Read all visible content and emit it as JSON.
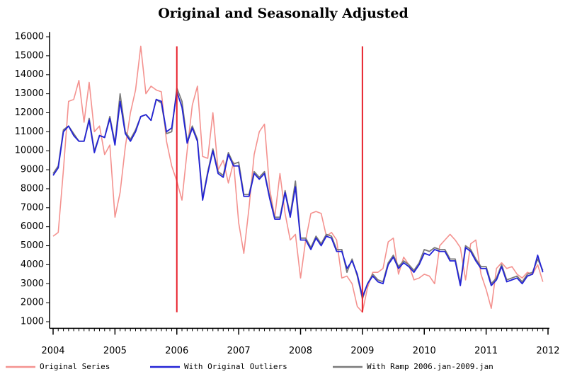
{
  "chart_data": {
    "type": "line",
    "title": "Original and Seasonally Adjusted",
    "x": [
      2004,
      2004.083,
      2004.167,
      2004.25,
      2004.333,
      2004.417,
      2004.5,
      2004.583,
      2004.667,
      2004.75,
      2004.833,
      2004.917,
      2005,
      2005.083,
      2005.167,
      2005.25,
      2005.333,
      2005.417,
      2005.5,
      2005.583,
      2005.667,
      2005.75,
      2005.833,
      2005.917,
      2006,
      2006.083,
      2006.167,
      2006.25,
      2006.333,
      2006.417,
      2006.5,
      2006.583,
      2006.667,
      2006.75,
      2006.833,
      2006.917,
      2007,
      2007.083,
      2007.167,
      2007.25,
      2007.333,
      2007.417,
      2007.5,
      2007.583,
      2007.667,
      2007.75,
      2007.833,
      2007.917,
      2008,
      2008.083,
      2008.167,
      2008.25,
      2008.333,
      2008.417,
      2008.5,
      2008.583,
      2008.667,
      2008.75,
      2008.833,
      2008.917,
      2009,
      2009.083,
      2009.167,
      2009.25,
      2009.333,
      2009.417,
      2009.5,
      2009.583,
      2009.667,
      2009.75,
      2009.833,
      2009.917,
      2010,
      2010.083,
      2010.167,
      2010.25,
      2010.333,
      2010.417,
      2010.5,
      2010.583,
      2010.667,
      2010.75,
      2010.833,
      2010.917,
      2011,
      2011.083,
      2011.167,
      2011.25,
      2011.333,
      2011.417,
      2011.5,
      2011.583,
      2011.667,
      2011.75,
      2011.833,
      2011.917
    ],
    "series": [
      {
        "name": "Original Series",
        "color": "#f4928f",
        "values": [
          5500,
          5700,
          9000,
          12600,
          12700,
          13700,
          11500,
          13600,
          11000,
          11300,
          9800,
          10300,
          6500,
          7800,
          10200,
          12000,
          13200,
          15500,
          13000,
          13400,
          13200,
          13100,
          10500,
          9200,
          8400,
          7400,
          10000,
          12400,
          13400,
          9700,
          9600,
          12000,
          9000,
          9500,
          8300,
          9400,
          6200,
          4600,
          7000,
          9800,
          11000,
          11400,
          8000,
          6500,
          8800,
          6700,
          5300,
          5600,
          3300,
          5300,
          6700,
          6800,
          6700,
          5500,
          5700,
          5300,
          3300,
          3400,
          3000,
          1800,
          1500,
          2800,
          3600,
          3600,
          3800,
          5200,
          5400,
          3500,
          4400,
          4000,
          3200,
          3300,
          3500,
          3400,
          3000,
          5000,
          5300,
          5600,
          5300,
          4900,
          3200,
          5100,
          5300,
          3500,
          2700,
          1700,
          3800,
          4100,
          3800,
          3900,
          3500,
          3300,
          3600,
          3500,
          4000,
          3100
        ]
      },
      {
        "name": "With Ramp 2006.jan-2009.jan",
        "color": "#7a7a7a",
        "values": [
          8800,
          9200,
          11100,
          11300,
          10900,
          10500,
          10500,
          11700,
          10000,
          10800,
          10700,
          11800,
          10400,
          13000,
          11000,
          10600,
          11100,
          11800,
          11900,
          11600,
          12700,
          12500,
          10900,
          11000,
          13300,
          12600,
          10500,
          11300,
          10600,
          7500,
          8900,
          10100,
          8900,
          8700,
          9900,
          9300,
          9400,
          7700,
          7700,
          8900,
          8600,
          8900,
          7600,
          6500,
          6500,
          7900,
          6600,
          8400,
          5400,
          5400,
          4900,
          5500,
          5100,
          5600,
          5500,
          4800,
          4800,
          3600,
          4300,
          3400,
          2200,
          3000,
          3500,
          3200,
          3100,
          4100,
          4500,
          3900,
          4200,
          4000,
          3700,
          4100,
          4800,
          4700,
          4900,
          4800,
          4800,
          4300,
          4300,
          3000,
          5000,
          4800,
          4300,
          3900,
          3900,
          3000,
          3300,
          4000,
          3200,
          3300,
          3400,
          3100,
          3500,
          3600,
          4300,
          3700
        ]
      },
      {
        "name": "With Original Outliers",
        "color": "#2323d6",
        "values": [
          8700,
          9100,
          11000,
          11300,
          10800,
          10500,
          10500,
          11600,
          9900,
          10800,
          10700,
          11700,
          10300,
          12600,
          10900,
          10500,
          11000,
          11800,
          11900,
          11600,
          12700,
          12600,
          11000,
          11200,
          13100,
          12300,
          10400,
          11200,
          10500,
          7400,
          8800,
          10000,
          8800,
          8600,
          9800,
          9200,
          9200,
          7600,
          7600,
          8800,
          8500,
          8800,
          7500,
          6400,
          6400,
          7800,
          6500,
          8100,
          5300,
          5300,
          4800,
          5400,
          5000,
          5500,
          5400,
          4700,
          4700,
          3800,
          4200,
          3500,
          2300,
          3000,
          3400,
          3100,
          3000,
          4000,
          4400,
          3800,
          4100,
          3900,
          3600,
          4000,
          4600,
          4500,
          4800,
          4700,
          4700,
          4200,
          4200,
          2900,
          4900,
          4700,
          4200,
          3800,
          3800,
          2900,
          3200,
          3900,
          3100,
          3200,
          3300,
          3000,
          3400,
          3500,
          4500,
          3600
        ]
      }
    ],
    "reference_lines": [
      {
        "x": 2006,
        "ymin": 1500,
        "ymax": 15500,
        "color": "#e8212b"
      },
      {
        "x": 2009,
        "ymin": 1500,
        "ymax": 15500,
        "color": "#e8212b"
      }
    ],
    "xlim": [
      2004,
      2012
    ],
    "xticks": [
      2004,
      2005,
      2006,
      2007,
      2008,
      2009,
      2010,
      2011,
      2012
    ],
    "ylim": [
      650,
      16250
    ],
    "yticks": [
      1000,
      2000,
      3000,
      4000,
      5000,
      6000,
      7000,
      8000,
      9000,
      10000,
      11000,
      12000,
      13000,
      14000,
      15000,
      16000
    ],
    "legend_order": [
      0,
      2,
      1
    ],
    "legend_position": "bottom"
  }
}
